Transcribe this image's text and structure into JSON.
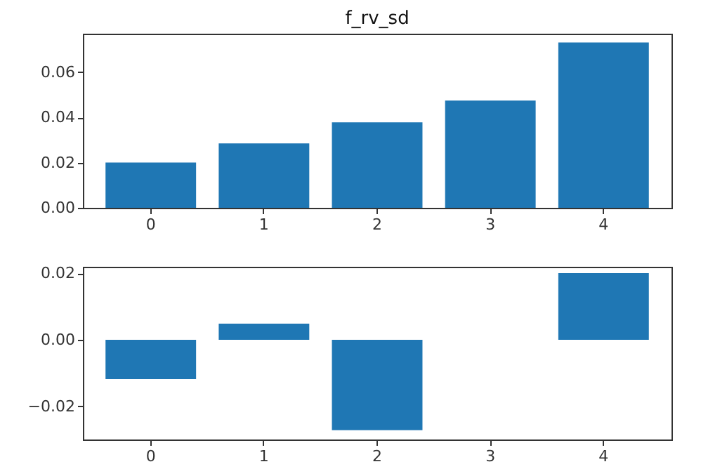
{
  "chart_data": [
    {
      "type": "bar",
      "title": "f_rv_sd",
      "categories": [
        "0",
        "1",
        "2",
        "3",
        "4"
      ],
      "values": [
        0.02,
        0.0285,
        0.0378,
        0.0474,
        0.0731
      ],
      "color": "#1f77b4",
      "ylim": [
        0,
        0.077
      ],
      "yticks": [
        {
          "value": 0,
          "label": "0.00"
        },
        {
          "value": 0.02,
          "label": "0.02"
        },
        {
          "value": 0.04,
          "label": "0.04"
        },
        {
          "value": 0.06,
          "label": "0.06"
        }
      ]
    },
    {
      "type": "bar",
      "categories": [
        "0",
        "1",
        "2",
        "3",
        "4"
      ],
      "values": [
        -0.0118,
        0.0049,
        -0.0272,
        0,
        0.0201
      ],
      "color": "#1f77b4",
      "ylim": [
        -0.03,
        0.022
      ],
      "yticks": [
        {
          "value": -0.02,
          "label": "−0.02"
        },
        {
          "value": 0,
          "label": "0.00"
        },
        {
          "value": 0.02,
          "label": "0.02"
        }
      ]
    }
  ]
}
